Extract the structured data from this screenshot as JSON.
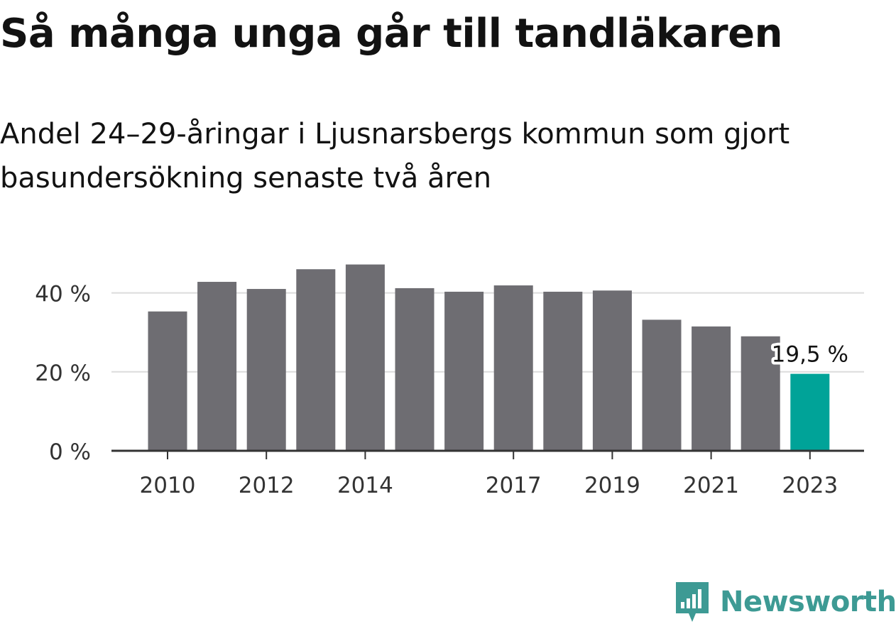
{
  "title": "Så många unga går till tandläkaren",
  "subtitle": "Andel 24–29-åringar i Ljusnarsbergs kommun som gjort basundersökning senaste två åren",
  "brand": {
    "name": "Newsworthy",
    "logo_icon": "newsworthy-bar-chart-logo",
    "color": "#3d9a94"
  },
  "colors": {
    "bar": "#6e6d72",
    "highlight": "#00a398",
    "grid": "#dcdcdc",
    "axis": "#333333",
    "text": "#333333"
  },
  "chart_data": {
    "type": "bar",
    "title": "",
    "xlabel": "",
    "ylabel": "",
    "categories": [
      "2010",
      "2011",
      "2012",
      "2013",
      "2014",
      "2015",
      "2016",
      "2017",
      "2018",
      "2019",
      "2020",
      "2021",
      "2022",
      "2023"
    ],
    "values": [
      35.3,
      42.8,
      41.0,
      46.0,
      47.2,
      41.2,
      40.3,
      41.9,
      40.3,
      40.6,
      33.2,
      31.5,
      29.0,
      19.5
    ],
    "ylim": [
      0,
      50
    ],
    "yticks": [
      0,
      20,
      40
    ],
    "ytick_labels": [
      "0 %",
      "20 %",
      "40 %"
    ],
    "xtick_labels": [
      "2010",
      "2012",
      "2014",
      "2017",
      "2019",
      "2021",
      "2023"
    ],
    "highlight_category": "2023",
    "annotation": "19,5 %",
    "grid": true,
    "legend": "none"
  }
}
